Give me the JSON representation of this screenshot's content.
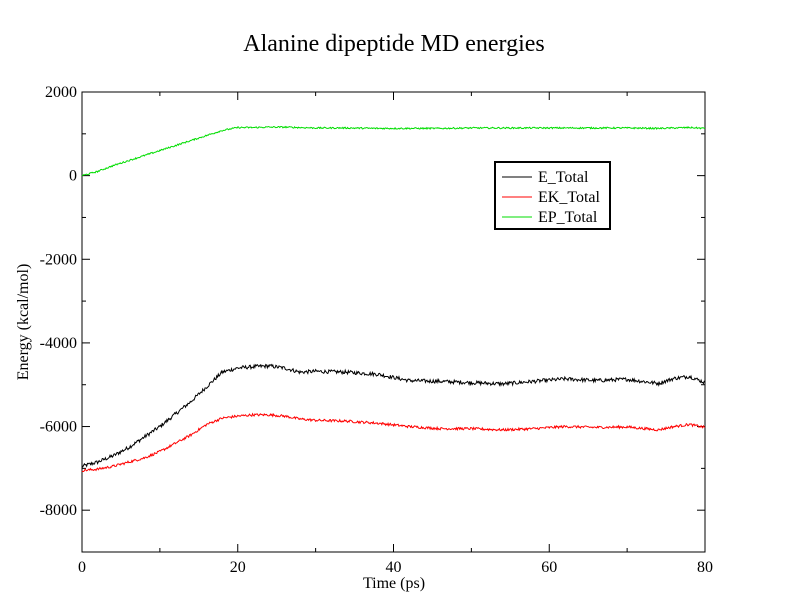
{
  "chart_data": {
    "type": "line",
    "title": "Alanine dipeptide MD energies",
    "xlabel": "Time (ps)",
    "ylabel": "Energy (kcal/mol)",
    "xlim": [
      0,
      80
    ],
    "ylim": [
      -9000,
      2000
    ],
    "x_ticks": [
      0,
      20,
      40,
      60,
      80
    ],
    "y_ticks": [
      2000,
      0,
      -2000,
      -4000,
      -6000,
      -8000
    ],
    "x_tick_labels": [
      "0",
      "20",
      "40",
      "60",
      "80"
    ],
    "y_tick_labels": [
      "2000",
      "0",
      "-2000",
      "-4000",
      "-6000",
      "-8000"
    ],
    "x_minor_step": 10,
    "y_minor_step": 1000,
    "grid": false,
    "legend_position": "top-right",
    "series": [
      {
        "name": "E_Total",
        "color": "#000000",
        "noise": 45,
        "x": [
          0,
          2,
          4,
          6,
          8,
          10,
          12,
          14,
          16,
          18,
          20,
          22,
          24,
          26,
          28,
          30,
          34,
          38,
          42,
          46,
          50,
          54,
          58,
          62,
          66,
          70,
          74,
          76,
          78,
          80
        ],
        "y": [
          -6950,
          -6850,
          -6700,
          -6500,
          -6250,
          -6000,
          -5700,
          -5400,
          -5050,
          -4700,
          -4600,
          -4570,
          -4550,
          -4600,
          -4700,
          -4680,
          -4700,
          -4750,
          -4900,
          -4920,
          -4950,
          -4980,
          -4920,
          -4860,
          -4900,
          -4870,
          -4970,
          -4850,
          -4800,
          -4950
        ]
      },
      {
        "name": "EK_Total",
        "color": "#ff0000",
        "noise": 30,
        "x": [
          0,
          2,
          4,
          6,
          8,
          10,
          12,
          14,
          16,
          18,
          20,
          22,
          24,
          26,
          28,
          30,
          34,
          38,
          42,
          46,
          50,
          54,
          58,
          62,
          66,
          70,
          74,
          76,
          78,
          80
        ],
        "y": [
          -7050,
          -7020,
          -6950,
          -6850,
          -6750,
          -6600,
          -6400,
          -6200,
          -5950,
          -5800,
          -5750,
          -5720,
          -5720,
          -5750,
          -5820,
          -5850,
          -5870,
          -5920,
          -6000,
          -6050,
          -6050,
          -6080,
          -6050,
          -6000,
          -6020,
          -6010,
          -6080,
          -6000,
          -5950,
          -6020
        ]
      },
      {
        "name": "EP_Total",
        "color": "#00dd00",
        "noise": 18,
        "x": [
          0,
          2,
          4,
          6,
          8,
          10,
          12,
          14,
          16,
          18,
          20,
          22,
          24,
          26,
          28,
          30,
          34,
          38,
          42,
          46,
          50,
          54,
          58,
          62,
          66,
          70,
          74,
          76,
          78,
          80
        ],
        "y": [
          0,
          100,
          240,
          360,
          480,
          600,
          720,
          840,
          960,
          1080,
          1150,
          1150,
          1160,
          1160,
          1150,
          1140,
          1140,
          1130,
          1130,
          1130,
          1140,
          1140,
          1140,
          1140,
          1140,
          1140,
          1130,
          1140,
          1150,
          1130
        ]
      }
    ]
  }
}
